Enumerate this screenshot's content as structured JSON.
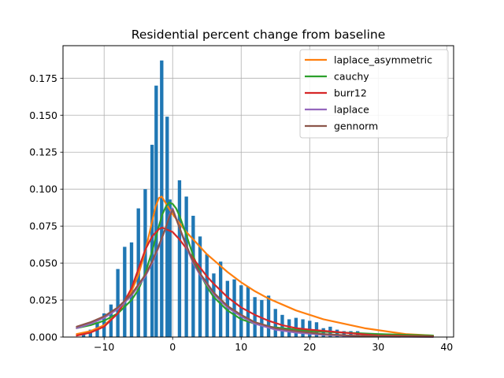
{
  "chart_data": {
    "type": "bar",
    "title": "Residential percent change from baseline",
    "xlabel": "",
    "ylabel": "",
    "xlim": [
      -16,
      41
    ],
    "ylim": [
      0,
      0.197
    ],
    "xticks": [
      -10,
      0,
      10,
      20,
      30,
      40
    ],
    "xtick_labels": [
      "−10",
      "0",
      "10",
      "20",
      "30",
      "40"
    ],
    "yticks": [
      0,
      0.025,
      0.05,
      0.075,
      0.1,
      0.125,
      0.15,
      0.175
    ],
    "ytick_labels": [
      "0.000",
      "0.025",
      "0.050",
      "0.075",
      "0.100",
      "0.125",
      "0.150",
      "0.175"
    ],
    "grid": true,
    "legend_position": "top-right",
    "histogram": {
      "color": "#1f77b4",
      "bar_width": 0.5,
      "x": [
        -13,
        -12,
        -11,
        -10,
        -9,
        -8,
        -7,
        -6,
        -5,
        -4,
        -3,
        -2.4,
        -1.6,
        -0.8,
        -0.4,
        1,
        2,
        3,
        4,
        5,
        6,
        7,
        8,
        9,
        10,
        11,
        12,
        13,
        14,
        15,
        16,
        17,
        18,
        19,
        20,
        21,
        22,
        23,
        24,
        25,
        26,
        27
      ],
      "values": [
        0.002,
        0.005,
        0.01,
        0.016,
        0.022,
        0.046,
        0.061,
        0.064,
        0.087,
        0.1,
        0.13,
        0.17,
        0.187,
        0.149,
        0.093,
        0.106,
        0.095,
        0.082,
        0.068,
        0.056,
        0.043,
        0.051,
        0.038,
        0.039,
        0.035,
        0.034,
        0.027,
        0.025,
        0.028,
        0.019,
        0.015,
        0.012,
        0.013,
        0.012,
        0.011,
        0.01,
        0.006,
        0.007,
        0.005,
        0.004,
        0.004,
        0.004
      ]
    },
    "series": [
      {
        "name": "laplace_asymmetric",
        "color": "#ff7f0e",
        "x": [
          -14,
          -12,
          -10,
          -8,
          -6,
          -5,
          -4,
          -3,
          -2.5,
          -2,
          -1.6,
          -1.2,
          -0.8,
          -0.4,
          0,
          1,
          2,
          3,
          4,
          5,
          6,
          8,
          10,
          12,
          14,
          16,
          18,
          20,
          22,
          25,
          28,
          31,
          34,
          38
        ],
        "values": [
          0.002,
          0.004,
          0.008,
          0.016,
          0.031,
          0.042,
          0.058,
          0.078,
          0.088,
          0.094,
          0.095,
          0.092,
          0.089,
          0.086,
          0.083,
          0.077,
          0.071,
          0.066,
          0.061,
          0.056,
          0.052,
          0.044,
          0.037,
          0.031,
          0.026,
          0.022,
          0.018,
          0.015,
          0.012,
          0.009,
          0.006,
          0.004,
          0.002,
          0.001
        ]
      },
      {
        "name": "cauchy",
        "color": "#2ca02c",
        "x": [
          -14,
          -12,
          -10,
          -8,
          -6,
          -5,
          -4,
          -3,
          -2,
          -1.5,
          -1,
          -0.5,
          0,
          0.5,
          1,
          2,
          3,
          4,
          5,
          6,
          8,
          10,
          12,
          14,
          16,
          20,
          25,
          30,
          38
        ],
        "values": [
          0.006,
          0.008,
          0.011,
          0.016,
          0.025,
          0.032,
          0.043,
          0.058,
          0.075,
          0.083,
          0.088,
          0.091,
          0.09,
          0.087,
          0.082,
          0.069,
          0.055,
          0.043,
          0.034,
          0.027,
          0.018,
          0.012,
          0.009,
          0.007,
          0.006,
          0.004,
          0.003,
          0.002,
          0.001
        ]
      },
      {
        "name": "burr12",
        "color": "#d62728",
        "x": [
          -14,
          -12,
          -10,
          -8,
          -6,
          -5,
          -4,
          -3,
          -2,
          -1.5,
          -1,
          0,
          1,
          2,
          3,
          4,
          5,
          6,
          8,
          10,
          12,
          14,
          16,
          18,
          20,
          25,
          30,
          38
        ],
        "values": [
          0.001,
          0.003,
          0.007,
          0.016,
          0.033,
          0.046,
          0.059,
          0.068,
          0.073,
          0.074,
          0.073,
          0.071,
          0.066,
          0.06,
          0.053,
          0.047,
          0.041,
          0.036,
          0.027,
          0.02,
          0.015,
          0.011,
          0.008,
          0.006,
          0.005,
          0.003,
          0.001,
          0.0005
        ]
      },
      {
        "name": "laplace",
        "color": "#9467bd",
        "x": [
          -14,
          -12,
          -10,
          -8,
          -6,
          -4,
          -3,
          -2,
          -1,
          -0.5,
          0,
          1,
          2,
          3,
          4,
          6,
          8,
          10,
          12,
          15,
          18,
          22,
          26,
          30,
          38
        ],
        "values": [
          0.006,
          0.009,
          0.013,
          0.019,
          0.028,
          0.041,
          0.05,
          0.061,
          0.074,
          0.082,
          0.087,
          0.074,
          0.061,
          0.05,
          0.042,
          0.029,
          0.02,
          0.014,
          0.009,
          0.005,
          0.003,
          0.0015,
          0.0007,
          0.0003,
          0.0001
        ]
      },
      {
        "name": "gennorm",
        "color": "#8c564b",
        "x": [
          -14,
          -12,
          -10,
          -8,
          -6,
          -4,
          -3,
          -2,
          -1,
          -0.5,
          0,
          1,
          2,
          3,
          4,
          6,
          8,
          10,
          12,
          15,
          18,
          22,
          26,
          30,
          38
        ],
        "values": [
          0.007,
          0.01,
          0.014,
          0.02,
          0.029,
          0.042,
          0.051,
          0.062,
          0.074,
          0.081,
          0.086,
          0.074,
          0.062,
          0.051,
          0.043,
          0.03,
          0.021,
          0.015,
          0.01,
          0.006,
          0.004,
          0.002,
          0.001,
          0.0005,
          0.0002
        ]
      }
    ]
  }
}
